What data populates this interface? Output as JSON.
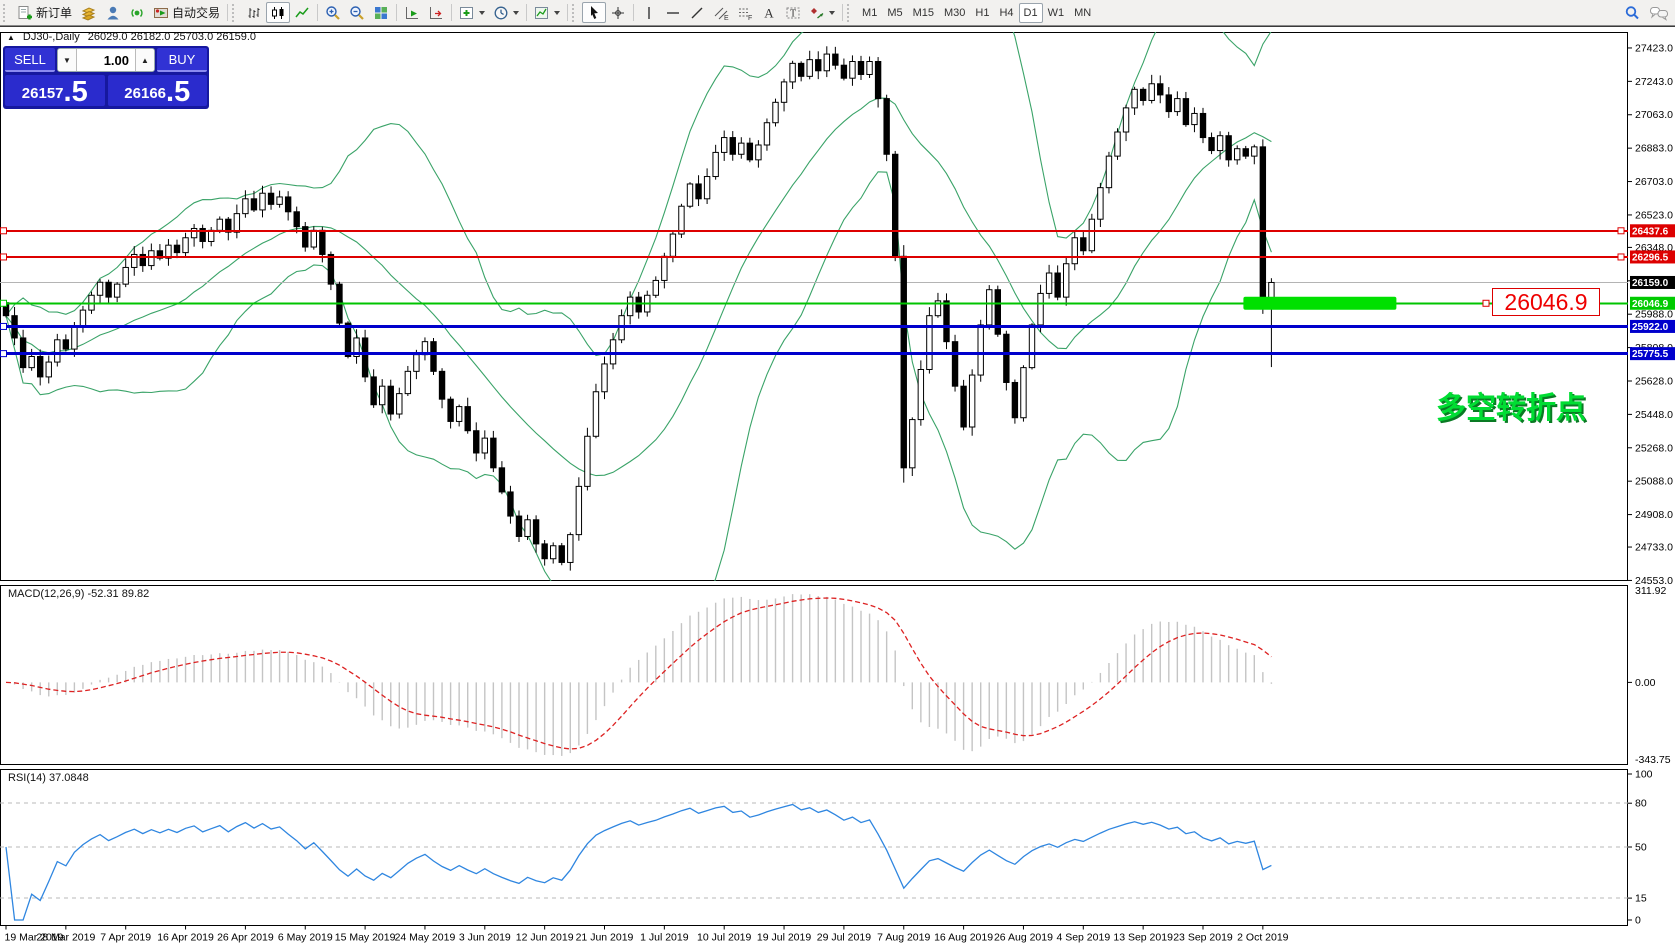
{
  "toolbar": {
    "new_order_label": "新订单",
    "autotrading_label": "自动交易",
    "timeframes": [
      "M1",
      "M5",
      "M15",
      "M30",
      "H1",
      "H4",
      "D1",
      "W1",
      "MN"
    ],
    "active_timeframe": "D1"
  },
  "chart_header": {
    "collapse_marker": "▲",
    "symbol": "DJ30-,Daily",
    "ohlc": "26029.0 26182.0 25703.0 26159.0"
  },
  "quote_panel": {
    "sell_label": "SELL",
    "buy_label": "BUY",
    "volume": "1.00",
    "sell_price_int": "26157",
    "sell_price_frac": ".5",
    "buy_price_int": "26166",
    "buy_price_frac": ".5"
  },
  "annotations": {
    "price_label": "26046.9",
    "note_text": "多空转折点",
    "note_color": "#00dd33"
  },
  "indicators": {
    "macd": {
      "label": "MACD(12,26,9) -52.31 89.82",
      "fast": 12,
      "slow": 26,
      "signal": 9,
      "axis_top": "311.92",
      "axis_zero": "0.00",
      "axis_bottom": "-343.75",
      "histogram_color": "#c4c4c4",
      "signal_color": "#dd2222"
    },
    "rsi": {
      "label": "RSI(14) 37.0848",
      "period": 14,
      "current": 37.0848,
      "levels": [
        100,
        80,
        50,
        15,
        0
      ],
      "dashed_levels": [
        80,
        50,
        15
      ],
      "line_color": "#2f86e0"
    }
  },
  "chart": {
    "type": "candlestick",
    "symbol": "DJ30",
    "timeframe": "Daily",
    "bull_color": "#ffffff",
    "bear_color": "#000000",
    "price_ticks": [
      27423.0,
      27243.0,
      27063.0,
      26883.0,
      26703.0,
      26523.0,
      26348.0,
      26168.0,
      25988.0,
      25808.0,
      25628.0,
      25448.0,
      25268.0,
      25088.0,
      24908.0,
      24733.0,
      24553.0
    ],
    "hlines": [
      {
        "price": 26437.6,
        "label": "26437.6",
        "color": "#dd0000",
        "width": 2,
        "right_handle": true
      },
      {
        "price": 26296.5,
        "label": "26296.5",
        "color": "#dd0000",
        "width": 2,
        "right_handle": true
      },
      {
        "price": 26046.9,
        "label": "26046.9",
        "color": "#00c400",
        "width": 2,
        "highlight": true
      },
      {
        "price": 25922.0,
        "label": "25922.0",
        "color": "#0000cc",
        "width": 3
      },
      {
        "price": 25775.5,
        "label": "25775.5",
        "color": "#0000cc",
        "width": 3
      }
    ],
    "current_price": {
      "price": 26159.0,
      "label": "26159.0",
      "line_color": "#b4b4b4",
      "badge_bg": "#000000"
    },
    "bollinger": {
      "period": 20,
      "deviation": 2,
      "color": "#3aa368"
    },
    "bars_per_tick": 7,
    "date_ticks": [
      "19 Mar 2019",
      "28 Mar 2019",
      "7 Apr 2019",
      "16 Apr 2019",
      "26 Apr 2019",
      "6 May 2019",
      "15 May 2019",
      "24 May 2019",
      "3 Jun 2019",
      "12 Jun 2019",
      "21 Jun 2019",
      "1 Jul 2019",
      "10 Jul 2019",
      "19 Jul 2019",
      "29 Jul 2019",
      "7 Aug 2019",
      "16 Aug 2019",
      "26 Aug 2019",
      "4 Sep 2019",
      "13 Sep 2019",
      "23 Sep 2019",
      "2 Oct 2019"
    ],
    "first_open": 26050,
    "closes": [
      25980,
      25860,
      25700,
      25760,
      25650,
      25730,
      25850,
      25800,
      25920,
      26010,
      26090,
      26160,
      26080,
      26150,
      26240,
      26310,
      26250,
      26330,
      26290,
      26360,
      26320,
      26400,
      26450,
      26380,
      26440,
      26500,
      26430,
      26530,
      26610,
      26550,
      26640,
      26580,
      26620,
      26540,
      26460,
      26350,
      26440,
      26310,
      26150,
      25940,
      25760,
      25860,
      25650,
      25500,
      25600,
      25450,
      25560,
      25680,
      25770,
      25840,
      25680,
      25530,
      25410,
      25490,
      25360,
      25240,
      25320,
      25160,
      25030,
      24900,
      24790,
      24880,
      24750,
      24670,
      24740,
      24650,
      24800,
      25060,
      25330,
      25570,
      25720,
      25850,
      25980,
      26080,
      26000,
      26090,
      26170,
      26300,
      26420,
      26570,
      26690,
      26610,
      26730,
      26860,
      26940,
      26850,
      26910,
      26820,
      26900,
      27020,
      27130,
      27240,
      27340,
      27270,
      27360,
      27300,
      27390,
      27330,
      27260,
      27350,
      27280,
      27350,
      27150,
      26850,
      26300,
      25160,
      25420,
      25690,
      25980,
      26060,
      25840,
      25600,
      25380,
      25660,
      25930,
      26120,
      25880,
      25620,
      25430,
      25700,
      25930,
      26100,
      26210,
      26080,
      26260,
      26400,
      26330,
      26500,
      26670,
      26840,
      26970,
      27100,
      27200,
      27140,
      27230,
      27170,
      27080,
      27150,
      27010,
      27070,
      26940,
      26870,
      26950,
      26820,
      26880,
      26840,
      26890,
      26060,
      26159
    ],
    "candle_overrides": {
      "105": [
        26300,
        26360,
        25080,
        25160
      ],
      "147": [
        26890,
        26930,
        25990,
        26060
      ],
      "148": [
        26029,
        26182,
        25703,
        26159
      ]
    }
  }
}
